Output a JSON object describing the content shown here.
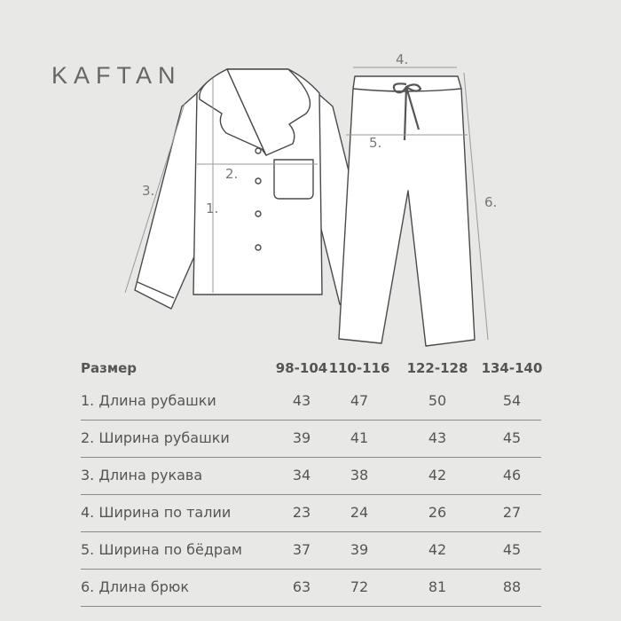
{
  "brand": "KAFTAN",
  "diagram_labels": {
    "m1": "1.",
    "m2": "2.",
    "m3": "3.",
    "m4": "4.",
    "m5": "5.",
    "m6": "6."
  },
  "table": {
    "header": [
      "Размер",
      "98-104",
      "110-116",
      "122-128",
      "134-140"
    ],
    "rows": [
      {
        "label": "1.  Длина рубашки",
        "values": [
          "43",
          "47",
          "50",
          "54"
        ]
      },
      {
        "label": "2. Ширина рубашки",
        "values": [
          "39",
          "41",
          "43",
          "45"
        ]
      },
      {
        "label": "3.  Длина рукава",
        "values": [
          "34",
          "38",
          "42",
          "46"
        ]
      },
      {
        "label": "4. Ширина по талии",
        "values": [
          "23",
          "24",
          "26",
          "27"
        ]
      },
      {
        "label": "5. Ширина по бёдрам",
        "values": [
          "37",
          "39",
          "42",
          "45"
        ]
      },
      {
        "label": "6. Длина брюк",
        "values": [
          "63",
          "72",
          "81",
          "88"
        ]
      }
    ]
  },
  "colors": {
    "background": "#e8e9e7",
    "text": "#555555",
    "outline": "#4a4a4a",
    "measure": "#9a9a9a"
  }
}
